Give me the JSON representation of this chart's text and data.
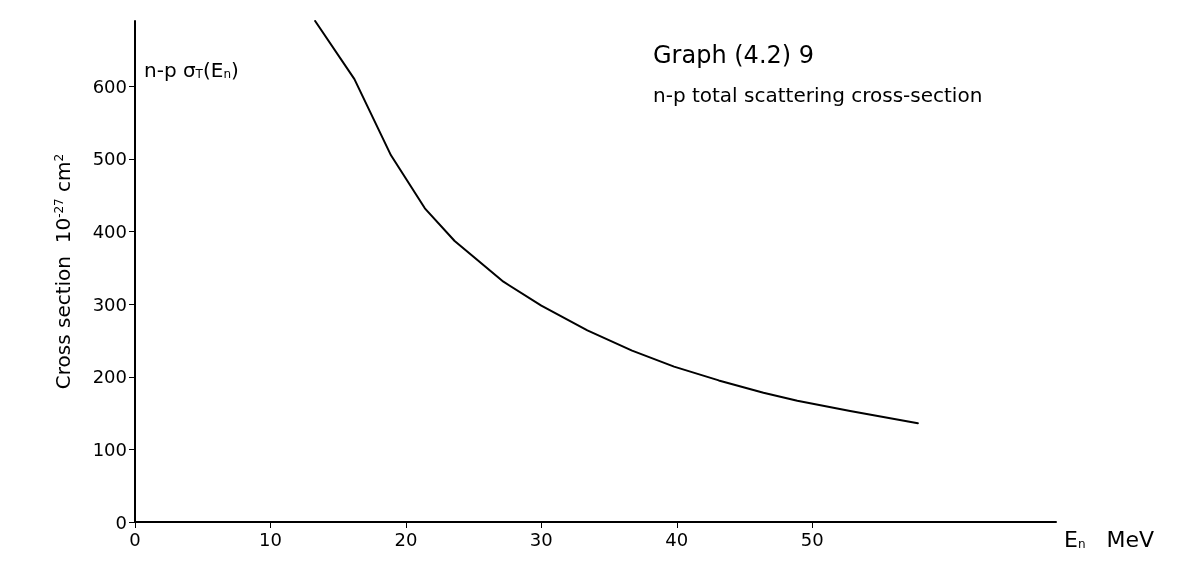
{
  "chart_data": {
    "type": "line",
    "title": "Graph (4.2) 9",
    "subtitle": "n-p total scattering cross-section",
    "xlabel": "E$_{n}$   MeV",
    "ylabel": "Cross section  10$^{-27}$ cm$^{2}$",
    "annotations": [
      "n-p σ$_{T}$(E$_{n}$)"
    ],
    "xlim": [
      0,
      68
    ],
    "xticks": [
      0,
      10,
      20,
      30,
      40,
      50
    ],
    "ylim": [
      0,
      690
    ],
    "yticks": [
      0,
      100,
      200,
      300,
      400,
      500,
      600
    ],
    "marker": "none",
    "line_style": "solid",
    "x": [
      13.3,
      16.2,
      18.9,
      21.4,
      23.6,
      27.2,
      30.0,
      33.4,
      36.7,
      39.8,
      43.1,
      46.4,
      48.9,
      52.8,
      57.8
    ],
    "series": [
      {
        "color": "#000000",
        "values": [
          690,
          610,
          505,
          432,
          387,
          331,
          298,
          264,
          236,
          214,
          195,
          178,
          167,
          153,
          136
        ]
      }
    ]
  }
}
